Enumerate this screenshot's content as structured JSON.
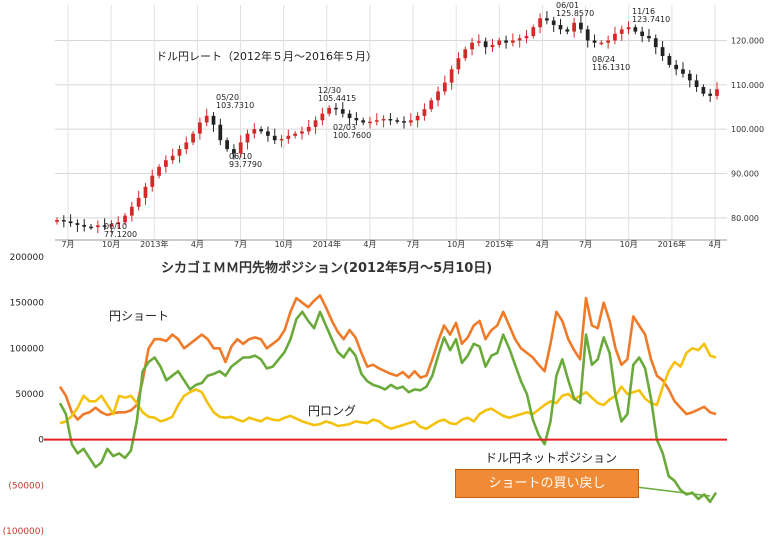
{
  "chart_data": [
    {
      "type": "candlestick",
      "title": "ドル円レート（2012年５月〜2016年５月）",
      "y_ticks": [
        "80.000",
        "90.000",
        "100.000",
        "110.000",
        "120.000"
      ],
      "ylim": [
        75,
        128
      ],
      "x_ticks": [
        "7月",
        "10月",
        "2013年",
        "4月",
        "7月",
        "10月",
        "2014年",
        "4月",
        "7月",
        "10月",
        "2015年",
        "4月",
        "7月",
        "10月",
        "2016年",
        "4月"
      ],
      "grid": true,
      "series": [
        {
          "values": [
            79.5,
            79.2,
            78.8,
            78.4,
            78.0,
            77.9,
            78.3,
            78.1,
            78.6,
            79.0,
            80.5,
            82.5,
            84.5,
            87.0,
            89.5,
            91.5,
            93.0,
            94.0,
            95.5,
            97.0,
            99.0,
            101.5,
            103.0,
            101.0,
            97.5,
            95.5,
            94.5,
            97.0,
            99.0,
            100.0,
            99.5,
            98.5,
            97.5,
            97.8,
            98.5,
            99.0,
            99.5,
            100.5,
            102.0,
            103.5,
            104.8,
            104.5,
            103.5,
            102.5,
            102.0,
            101.5,
            101.7,
            102.0,
            102.3,
            102.0,
            101.8,
            101.5,
            102.0,
            103.0,
            104.5,
            106.5,
            108.5,
            110.5,
            113.5,
            116.0,
            118.0,
            119.5,
            119.8,
            118.5,
            119.0,
            120.0,
            119.5,
            120.0,
            120.5,
            121.0,
            123.0,
            125.0,
            124.5,
            123.5,
            122.5,
            122.0,
            124.0,
            122.5,
            120.0,
            119.5,
            119.5,
            120.0,
            121.5,
            122.5,
            123.0,
            122.0,
            121.0,
            120.5,
            118.5,
            116.5,
            114.5,
            113.5,
            112.5,
            111.0,
            109.5,
            108.0,
            107.5,
            109.0
          ]
        }
      ],
      "annotations": [
        {
          "date": "06/10",
          "value": "77.1200"
        },
        {
          "date": "05/20",
          "value": "103.7310"
        },
        {
          "date": "06/10",
          "value": "93.7790"
        },
        {
          "date": "12/30",
          "value": "105.4415"
        },
        {
          "date": "02/03",
          "value": "100.7600"
        },
        {
          "date": "06/01",
          "value": "125.8570"
        },
        {
          "date": "08/24",
          "value": "116.1310"
        },
        {
          "date": "11/16",
          "value": "123.7410"
        }
      ]
    },
    {
      "type": "line",
      "title": "シカゴＩＭＭ円先物ポジション(2012年5月〜5月10日)",
      "y_ticks": [
        "200000",
        "150000",
        "100000",
        "50000",
        "0",
        "(50000)",
        "(100000)"
      ],
      "ylim": [
        -100000,
        200000
      ],
      "zero_line_color": "#e02020",
      "series": [
        {
          "name": "円ショート",
          "color": "#ef7b2a",
          "values": [
            58000,
            48000,
            30000,
            22000,
            28000,
            30000,
            35000,
            30000,
            27000,
            29000,
            30000,
            30000,
            32000,
            38000,
            65000,
            100000,
            110000,
            110000,
            108000,
            115000,
            110000,
            100000,
            105000,
            110000,
            115000,
            110000,
            100000,
            100000,
            85000,
            102000,
            110000,
            105000,
            110000,
            112000,
            110000,
            100000,
            105000,
            110000,
            120000,
            140000,
            155000,
            150000,
            145000,
            152000,
            158000,
            145000,
            130000,
            118000,
            110000,
            120000,
            112000,
            95000,
            80000,
            82000,
            78000,
            75000,
            72000,
            70000,
            74000,
            68000,
            75000,
            68000,
            70000,
            88000,
            108000,
            125000,
            115000,
            128000,
            105000,
            112000,
            125000,
            130000,
            110000,
            120000,
            125000,
            140000,
            125000,
            110000,
            100000,
            95000,
            90000,
            82000,
            75000,
            105000,
            140000,
            130000,
            110000,
            98000,
            88000,
            155000,
            125000,
            122000,
            150000,
            130000,
            100000,
            82000,
            88000,
            135000,
            125000,
            115000,
            88000,
            70000,
            65000,
            55000,
            42000,
            35000,
            28000,
            30000,
            33000,
            36000,
            30000,
            28000
          ]
        },
        {
          "name": "円ロング",
          "color": "#f4c20d",
          "values": [
            18000,
            20000,
            26000,
            35000,
            48000,
            42000,
            42000,
            48000,
            38000,
            28000,
            48000,
            46000,
            48000,
            40000,
            30000,
            25000,
            24000,
            20000,
            22000,
            25000,
            38000,
            48000,
            52000,
            55000,
            52000,
            40000,
            30000,
            25000,
            24000,
            25000,
            22000,
            20000,
            24000,
            22000,
            20000,
            24000,
            22000,
            21000,
            24000,
            26000,
            23000,
            20000,
            18000,
            16000,
            17000,
            20000,
            18000,
            15000,
            16000,
            17000,
            20000,
            19000,
            18000,
            22000,
            20000,
            15000,
            12000,
            14000,
            16000,
            18000,
            20000,
            14000,
            12000,
            16000,
            20000,
            22000,
            18000,
            17000,
            22000,
            24000,
            20000,
            28000,
            32000,
            34000,
            30000,
            26000,
            24000,
            26000,
            28000,
            30000,
            28000,
            33000,
            38000,
            42000,
            40000,
            48000,
            50000,
            44000,
            48000,
            52000,
            46000,
            40000,
            38000,
            44000,
            48000,
            58000,
            50000,
            52000,
            54000,
            45000,
            40000,
            38000,
            58000,
            75000,
            85000,
            80000,
            95000,
            100000,
            98000,
            105000,
            92000,
            90000
          ]
        },
        {
          "name": "ドル円ネットポジション",
          "color": "#6aaa3a",
          "values": [
            40000,
            28000,
            -5000,
            -15000,
            -10000,
            -20000,
            -30000,
            -25000,
            -10000,
            -18000,
            -15000,
            -20000,
            -12000,
            20000,
            75000,
            85000,
            90000,
            80000,
            65000,
            70000,
            75000,
            65000,
            55000,
            60000,
            62000,
            70000,
            72000,
            75000,
            70000,
            80000,
            85000,
            90000,
            90000,
            92000,
            88000,
            78000,
            80000,
            88000,
            96000,
            110000,
            132000,
            140000,
            130000,
            122000,
            140000,
            125000,
            110000,
            96000,
            90000,
            100000,
            92000,
            72000,
            64000,
            60000,
            58000,
            55000,
            60000,
            56000,
            58000,
            52000,
            55000,
            54000,
            58000,
            70000,
            92000,
            112000,
            98000,
            110000,
            84000,
            92000,
            105000,
            102000,
            80000,
            92000,
            95000,
            115000,
            100000,
            82000,
            64000,
            50000,
            22000,
            5000,
            -5000,
            20000,
            70000,
            88000,
            65000,
            45000,
            40000,
            115000,
            82000,
            88000,
            112000,
            95000,
            48000,
            20000,
            28000,
            82000,
            90000,
            78000,
            45000,
            0,
            -15000,
            -40000,
            -45000,
            -55000,
            -60000,
            -58000,
            -65000,
            -60000,
            -68000,
            -58000
          ]
        }
      ],
      "annotations": [
        "円ショート",
        "円ロング",
        "ドル円ネットポジション"
      ]
    }
  ],
  "callout": {
    "text": "ショートの買い戻し"
  }
}
